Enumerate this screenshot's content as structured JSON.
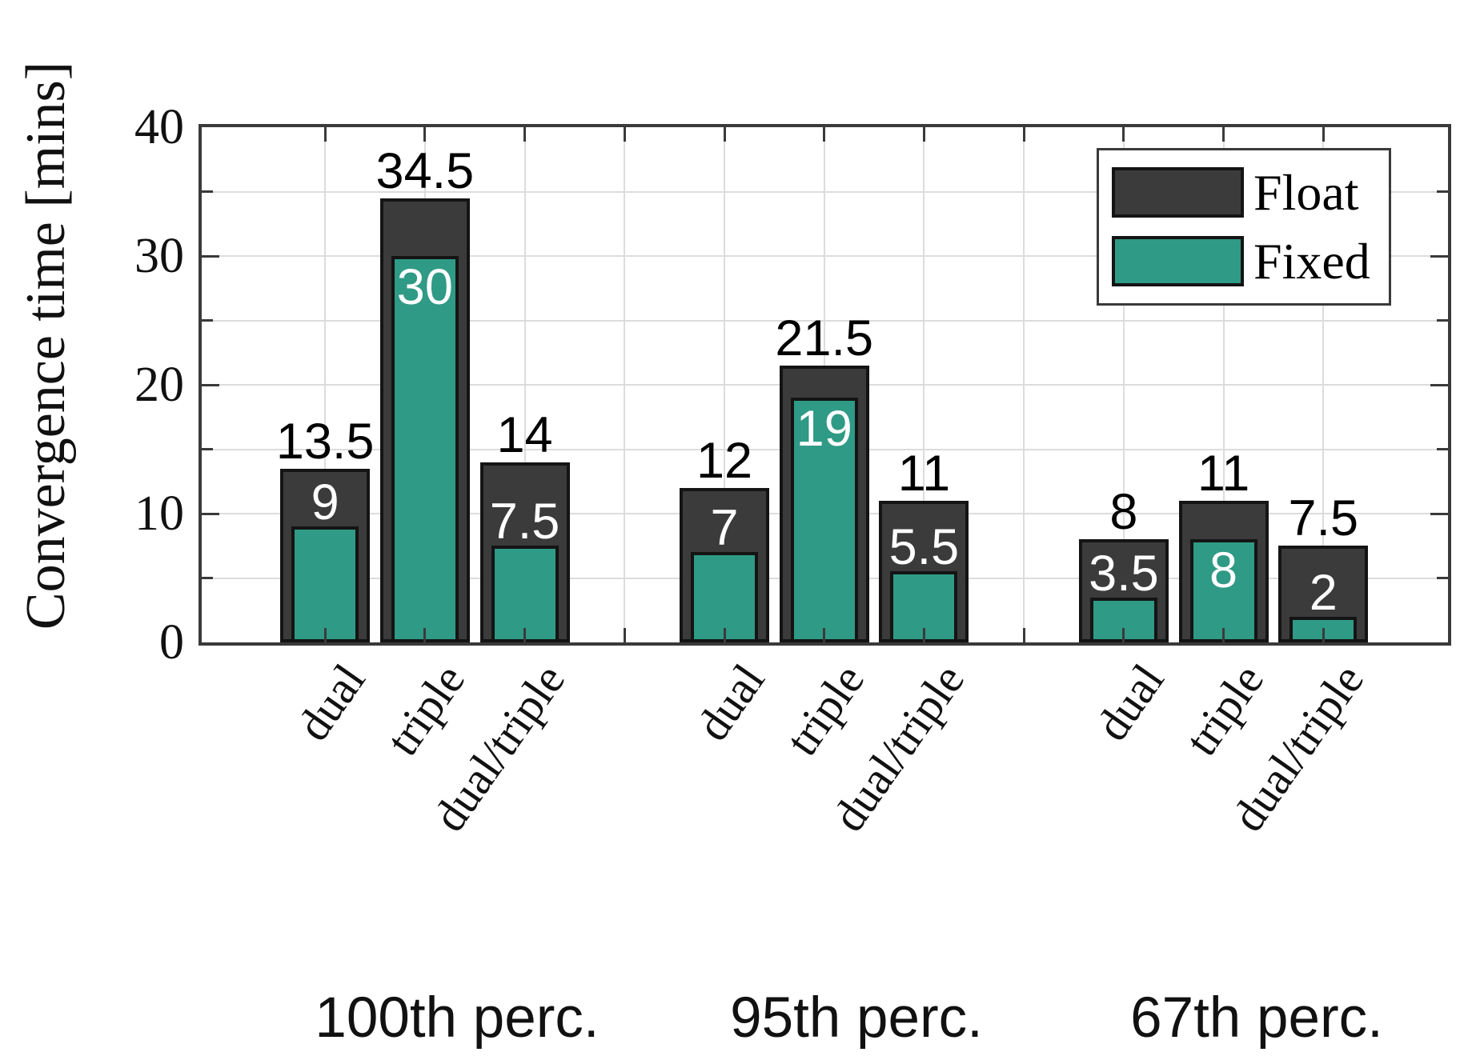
{
  "figure": {
    "background": "#ffffff"
  },
  "colors": {
    "axis": "#3a3a3a",
    "grid": "#dcdcdc",
    "bar_outline": "#141414",
    "float_fill": "#3b3b3b",
    "fixed_fill": "#2f9a85",
    "float_value_text": "#000000",
    "fixed_value_text": "#ffffff",
    "text": "#111111"
  },
  "chart_data": {
    "type": "bar",
    "title": "",
    "xlabel": "",
    "ylabel": "Convergence time [mins]",
    "ylim": [
      0,
      40
    ],
    "yticks_major": [
      0,
      10,
      20,
      30,
      40
    ],
    "ytick_labels": [
      "0",
      "10",
      "20",
      "30",
      "40"
    ],
    "yticks_minor": [
      5,
      15,
      25,
      35
    ],
    "grid": "on",
    "legend_position": "top-right",
    "legend": [
      {
        "name": "Float",
        "color": "#3b3b3b"
      },
      {
        "name": "Fixed",
        "color": "#2f9a85"
      }
    ],
    "series_note": "Fixed bars are drawn nested inside Float bars; value labels show minutes",
    "groups": [
      {
        "label": "100th perc.",
        "bars": [
          {
            "category": "dual",
            "float": 13.5,
            "fixed": 9,
            "fixed_label_pos": "above"
          },
          {
            "category": "triple",
            "float": 34.5,
            "fixed": 30,
            "fixed_label_pos": "inside"
          },
          {
            "category": "dual/triple",
            "float": 14,
            "fixed": 7.5,
            "fixed_label_pos": "above"
          }
        ]
      },
      {
        "label": "95th perc.",
        "bars": [
          {
            "category": "dual",
            "float": 12,
            "fixed": 7,
            "fixed_label_pos": "above"
          },
          {
            "category": "triple",
            "float": 21.5,
            "fixed": 19,
            "fixed_label_pos": "inside"
          },
          {
            "category": "dual/triple",
            "float": 11,
            "fixed": 5.5,
            "fixed_label_pos": "above"
          }
        ]
      },
      {
        "label": "67th perc.",
        "bars": [
          {
            "category": "dual",
            "float": 8,
            "fixed": 3.5,
            "fixed_label_pos": "above"
          },
          {
            "category": "triple",
            "float": 11,
            "fixed": 8,
            "fixed_label_pos": "inside"
          },
          {
            "category": "dual/triple",
            "float": 7.5,
            "fixed": 2,
            "fixed_label_pos": "above"
          }
        ]
      }
    ]
  }
}
